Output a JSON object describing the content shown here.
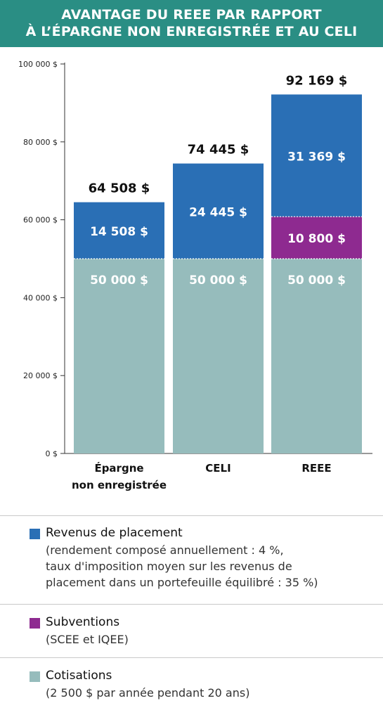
{
  "title": {
    "line1": "AVANTAGE DU REEE PAR RAPPORT",
    "line2": "À L’ÉPARGNE NON ENREGISTRÉE ET AU CELI"
  },
  "chart_data": {
    "type": "bar",
    "stacked": true,
    "categories": [
      [
        "Épargne",
        "non enregistrée"
      ],
      [
        "CELI"
      ],
      [
        "REEE"
      ]
    ],
    "y_ticks": [
      0,
      20000,
      40000,
      60000,
      80000,
      100000
    ],
    "y_tick_labels": [
      "0 $",
      "20 000 $",
      "40 000 $",
      "60 000 $",
      "80 000 $",
      "100 000 $"
    ],
    "ylim": [
      0,
      100000
    ],
    "series": [
      {
        "name": "Cotisations",
        "color": "#96bcbc",
        "values": [
          50000,
          50000,
          50000
        ],
        "labels": [
          "50 000 $",
          "50 000 $",
          "50 000 $"
        ]
      },
      {
        "name": "Subventions",
        "color": "#8e2a90",
        "values": [
          0,
          0,
          10800
        ],
        "labels": [
          "",
          "",
          "10 800 $"
        ]
      },
      {
        "name": "Revenus de placement",
        "color": "#2a6fb5",
        "values": [
          14508,
          24445,
          31369
        ],
        "labels": [
          "14 508 $",
          "24 445 $",
          "31 369 $"
        ]
      }
    ],
    "totals": [
      64508,
      74445,
      92169
    ],
    "total_labels": [
      "64 508 $",
      "74 445 $",
      "92 169 $"
    ]
  },
  "legend": [
    {
      "title": "Revenus de placement",
      "color": "#2a6fb5",
      "note_lines": [
        "(rendement composé annuellement : 4 %,",
        "taux d'imposition moyen sur les revenus de",
        "placement dans un portefeuille équilibré : 35 %)"
      ]
    },
    {
      "title": "Subventions",
      "color": "#8e2a90",
      "note_lines": [
        "(SCEE et IQEE)"
      ]
    },
    {
      "title": "Cotisations",
      "color": "#96bcbc",
      "note_lines": [
        "(2 500 $ par année pendant 20 ans)"
      ]
    }
  ]
}
